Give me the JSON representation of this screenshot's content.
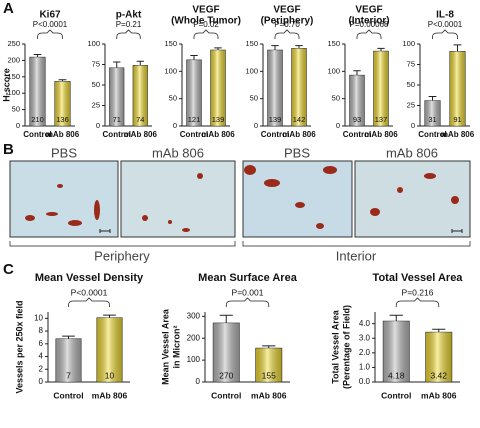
{
  "panels": [
    "A",
    "B",
    "C"
  ],
  "chart_data": [
    {
      "type": "bar",
      "title": "Ki67",
      "p_value": "P<0.0001",
      "ylabel": "H-score",
      "categories": [
        "Control",
        "mAb 806"
      ],
      "values": [
        210,
        136
      ],
      "errors": [
        8,
        5
      ],
      "colors": [
        "#b9b9b9",
        "#f3dc2e"
      ],
      "ylim": [
        0,
        250
      ],
      "yticks": [
        0,
        50,
        100,
        150,
        200,
        250
      ]
    },
    {
      "type": "bar",
      "title": "p-Akt",
      "p_value": "P=0.21",
      "categories": [
        "Control",
        "mAb 806"
      ],
      "values": [
        71,
        74
      ],
      "errors": [
        7,
        5
      ],
      "colors": [
        "#b9b9b9",
        "#f3dc2e"
      ],
      "ylim": [
        0,
        100
      ],
      "yticks": [
        0,
        25,
        50,
        75,
        100
      ]
    },
    {
      "type": "bar",
      "title": "VEGF",
      "subtitle": "(Whole Tumor)",
      "p_value": "P=0.02",
      "categories": [
        "Control",
        "mAb 806"
      ],
      "values": [
        121,
        139
      ],
      "errors": [
        8,
        4
      ],
      "colors": [
        "#b9b9b9",
        "#f3dc2e"
      ],
      "ylim": [
        0,
        150
      ],
      "yticks": [
        0,
        50,
        100,
        150
      ]
    },
    {
      "type": "bar",
      "title": "VEGF",
      "subtitle": "(Periphery)",
      "p_value": "P=0.70",
      "categories": [
        "Control",
        "mAb 806"
      ],
      "values": [
        139,
        142
      ],
      "errors": [
        8,
        5
      ],
      "colors": [
        "#b9b9b9",
        "#f3dc2e"
      ],
      "ylim": [
        0,
        150
      ],
      "yticks": [
        0,
        50,
        100,
        150
      ]
    },
    {
      "type": "bar",
      "title": "VEGF",
      "subtitle": "(Interior)",
      "p_value": "P=0.00068",
      "categories": [
        "Control",
        "mAb 806"
      ],
      "values": [
        93,
        137
      ],
      "errors": [
        8,
        5
      ],
      "colors": [
        "#b9b9b9",
        "#f3dc2e"
      ],
      "ylim": [
        0,
        150
      ],
      "yticks": [
        0,
        50,
        100,
        150
      ]
    },
    {
      "type": "bar",
      "title": "IL-8",
      "p_value": "P<0.0001",
      "categories": [
        "Control",
        "mAb 806"
      ],
      "values": [
        31,
        91
      ],
      "errors": [
        5,
        8
      ],
      "colors": [
        "#b9b9b9",
        "#f3dc2e"
      ],
      "ylim": [
        0,
        100
      ],
      "yticks": [
        0,
        25,
        50,
        75,
        100
      ]
    },
    {
      "type": "bar",
      "title": "Mean Vessel Density",
      "p_value": "P<0.0001",
      "ylabel": "Vessels per 250x field",
      "categories": [
        "Control",
        "mAb 806"
      ],
      "values": [
        6.8,
        10.1
      ],
      "value_labels": [
        "7",
        "10"
      ],
      "errors": [
        0.4,
        0.4
      ],
      "colors": [
        "#b9b9b9",
        "#f3dc2e"
      ],
      "ylim": [
        0,
        11
      ],
      "yticks": [
        0,
        2,
        4,
        6,
        8,
        10
      ]
    },
    {
      "type": "bar",
      "title": "Mean Surface Area",
      "p_value": "P=0.001",
      "ylabel": [
        "Mean Vessel Area",
        "in Micron²"
      ],
      "categories": [
        "Control",
        "mAb 806"
      ],
      "values": [
        270,
        155
      ],
      "errors": [
        35,
        10
      ],
      "colors": [
        "#b9b9b9",
        "#f3dc2e"
      ],
      "ylim": [
        0,
        320
      ],
      "yticks": [
        0,
        100,
        200,
        300
      ]
    },
    {
      "type": "bar",
      "title": "Total Vessel Area",
      "p_value": "P=0.216",
      "ylabel": [
        "Total Vessel Area",
        "(Perentage of Field)"
      ],
      "categories": [
        "Control",
        "mAb 806"
      ],
      "values": [
        4.18,
        3.42
      ],
      "errors": [
        0.4,
        0.2
      ],
      "colors": [
        "#b9b9b9",
        "#f3dc2e"
      ],
      "ylim": [
        0,
        4.8
      ],
      "yticks": [
        {
          "value": 0,
          "label": "0.0"
        },
        {
          "value": 1,
          "label": "1.0"
        },
        {
          "value": 2,
          "label": "2.0"
        },
        {
          "value": 3,
          "label": "3.0"
        },
        {
          "value": 4,
          "label": "4.0"
        }
      ]
    }
  ],
  "panel_b": {
    "images": [
      "PBS",
      "mAb 806",
      "PBS",
      "mAb 806"
    ],
    "regions": [
      "Periphery",
      "Interior"
    ]
  }
}
